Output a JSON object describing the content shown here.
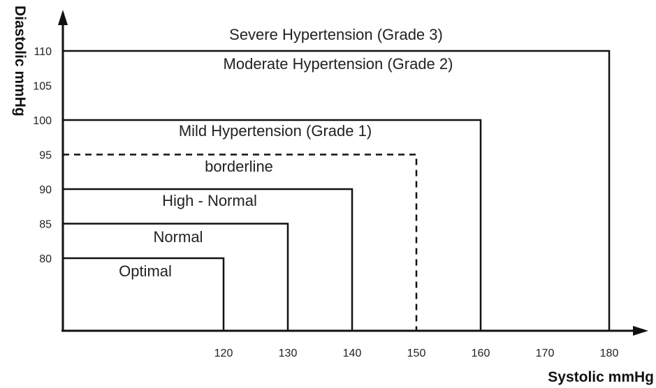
{
  "chart_data": {
    "type": "diagram",
    "xlabel": "Systolic mmHg",
    "ylabel": "Diastolic mmHg",
    "xticks": [
      120,
      130,
      140,
      150,
      160,
      170,
      180
    ],
    "yticks": [
      80,
      85,
      90,
      95,
      100,
      105,
      110
    ],
    "zones": [
      {
        "label": "Optimal",
        "systolic_max": 120,
        "diastolic_max": 80,
        "dashed": false
      },
      {
        "label": "Normal",
        "systolic_max": 130,
        "diastolic_max": 85,
        "dashed": false
      },
      {
        "label": "High - Normal",
        "systolic_max": 140,
        "diastolic_max": 90,
        "dashed": false
      },
      {
        "label": "borderline",
        "systolic_max": 150,
        "diastolic_max": 95,
        "dashed": true
      },
      {
        "label": "Mild Hypertension (Grade 1)",
        "systolic_max": 160,
        "diastolic_max": 100,
        "dashed": false
      },
      {
        "label": "Moderate Hypertension (Grade 2)",
        "systolic_max": 180,
        "diastolic_max": 110,
        "dashed": false
      },
      {
        "label": "Severe Hypertension (Grade 3)",
        "systolic_max": null,
        "diastolic_max": null,
        "dashed": false
      }
    ],
    "colors": {
      "line": "#111111",
      "text": "#222222"
    }
  }
}
